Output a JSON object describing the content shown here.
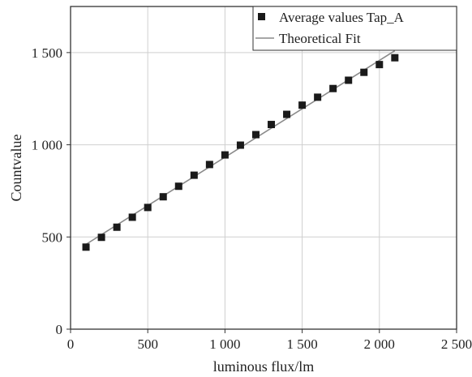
{
  "chart_data": {
    "type": "scatter",
    "title": "",
    "xlabel": "luminous flux/lm",
    "ylabel": "Countvalue",
    "xlim": [
      0,
      2500
    ],
    "ylim": [
      0,
      1750
    ],
    "x_ticks": [
      0,
      500,
      1000,
      1500,
      2000,
      2500
    ],
    "x_tick_labels": [
      "0",
      "500",
      "1 000",
      "1 500",
      "2 000",
      "2 500"
    ],
    "y_ticks": [
      0,
      500,
      1000,
      1500
    ],
    "y_tick_labels": [
      "0",
      "500",
      "1 000",
      "1 500"
    ],
    "grid": true,
    "legend_position": "top-right",
    "colors": {
      "series": "#1a1a1a",
      "fit": "#8a8a8a",
      "grid": "#cfcfcf",
      "axis": "#333333"
    },
    "series": [
      {
        "name": "Average values Tap_A",
        "kind": "scatter",
        "marker": "square",
        "x": [
          100,
          200,
          300,
          400,
          500,
          600,
          700,
          800,
          900,
          1000,
          1100,
          1200,
          1300,
          1400,
          1500,
          1600,
          1700,
          1800,
          1900,
          2000,
          2100
        ],
        "y": [
          445,
          498,
          553,
          607,
          660,
          718,
          775,
          835,
          893,
          945,
          998,
          1055,
          1110,
          1165,
          1215,
          1258,
          1305,
          1350,
          1393,
          1435,
          1472
        ]
      },
      {
        "name": "Theoretical Fit",
        "kind": "line",
        "x": [
          100,
          2100
        ],
        "y": [
          460,
          1510
        ]
      }
    ]
  }
}
